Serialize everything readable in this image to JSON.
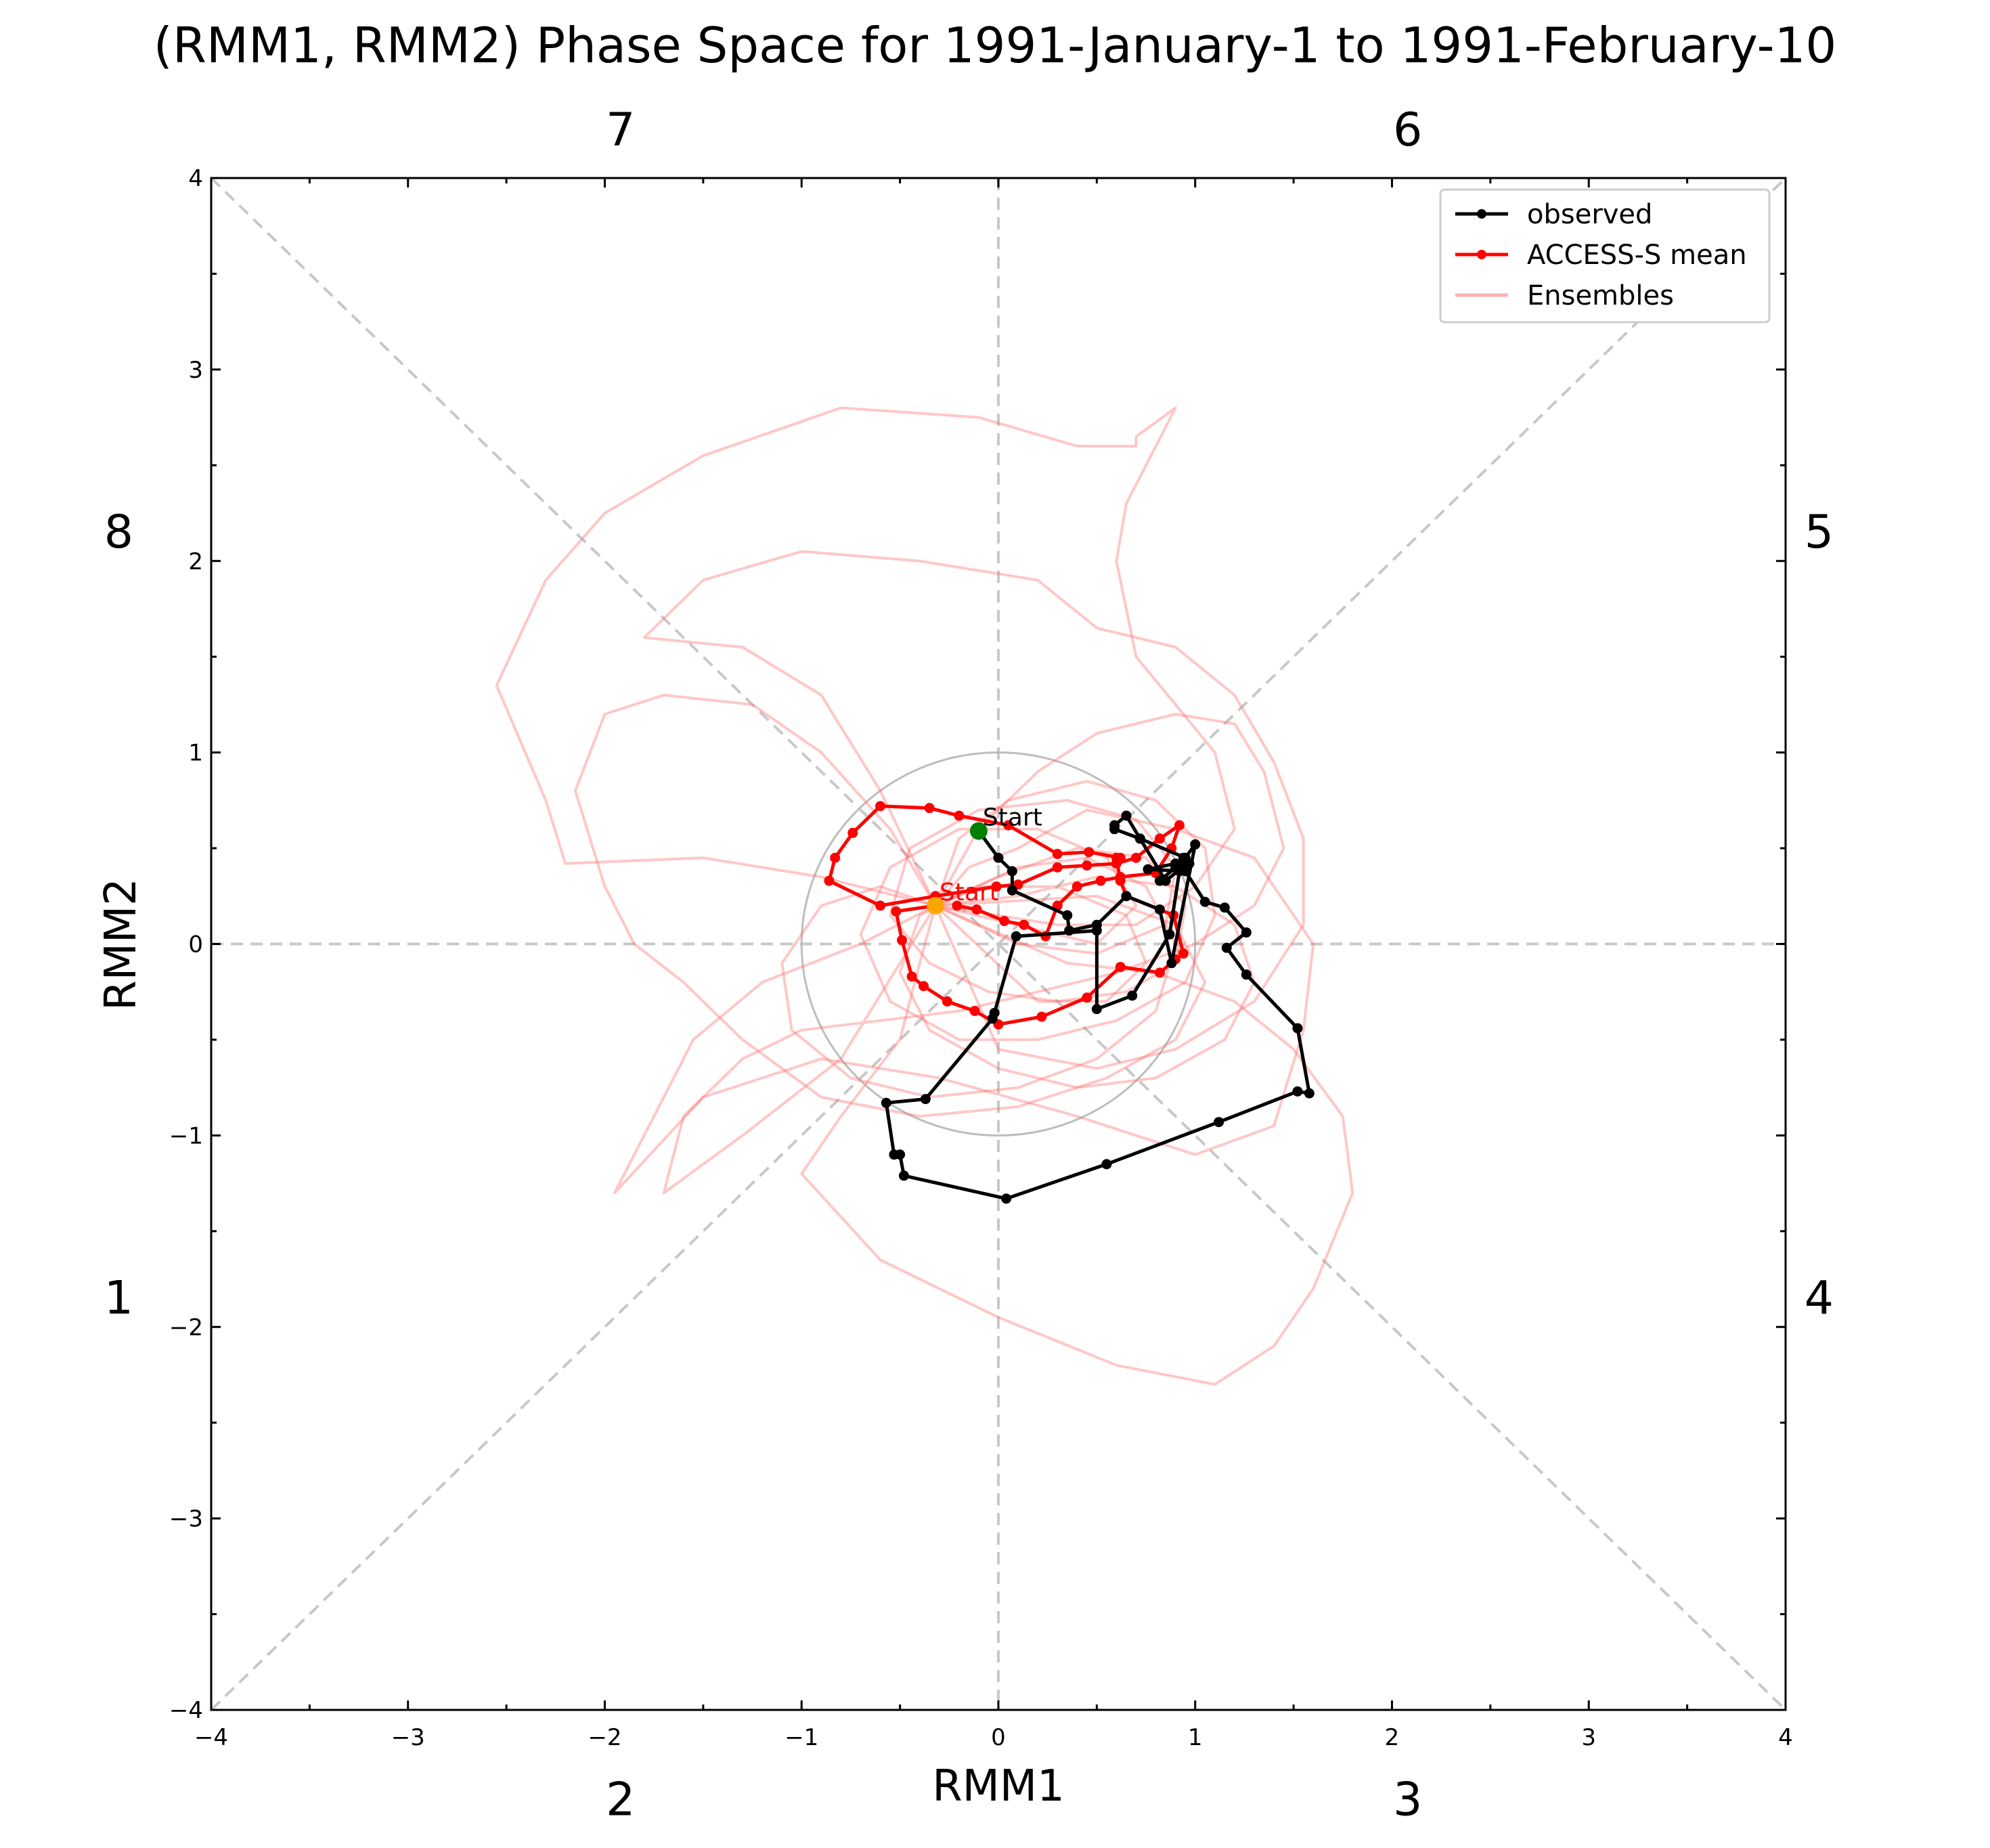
{
  "chart_data": {
    "type": "line",
    "title": "(RMM1, RMM2) Phase Space for 1991-January-1 to 1991-February-10",
    "xlabel": "RMM1",
    "ylabel": "RMM2",
    "xlim": [
      -4,
      4
    ],
    "ylim": [
      -4,
      4
    ],
    "xticks": [
      -4,
      -3,
      -2,
      -1,
      0,
      1,
      2,
      3,
      4
    ],
    "yticks": [
      -4,
      -3,
      -2,
      -1,
      0,
      1,
      2,
      3,
      4
    ],
    "xtick_labels": [
      "−4",
      "−3",
      "−2",
      "−1",
      "0",
      "1",
      "2",
      "3",
      "4"
    ],
    "ytick_labels": [
      "−4",
      "−3",
      "−2",
      "−1",
      "0",
      "1",
      "2",
      "3",
      "4"
    ],
    "phase_labels": [
      {
        "label": "7",
        "x": -1.92,
        "y": 4.17
      },
      {
        "label": "6",
        "x": 2.08,
        "y": 4.17
      },
      {
        "label": "8",
        "x": -4.47,
        "y": 2.07
      },
      {
        "label": "5",
        "x": 4.17,
        "y": 2.07
      },
      {
        "label": "1",
        "x": -4.47,
        "y": -1.93
      },
      {
        "label": "4",
        "x": 4.17,
        "y": -1.93
      },
      {
        "label": "2",
        "x": -1.92,
        "y": -4.55
      },
      {
        "label": "3",
        "x": 2.08,
        "y": -4.55
      }
    ],
    "unit_circle_radius": 1,
    "legend": {
      "position": "top-right",
      "entries": [
        {
          "label": "observed",
          "color": "#000000",
          "marker": true
        },
        {
          "label": "ACCESS-S mean",
          "color": "#ff0000",
          "marker": true
        },
        {
          "label": "Ensembles",
          "color": "#ffb3b3",
          "marker": false
        }
      ]
    },
    "start_labels": [
      {
        "text": "Start",
        "x": -0.1,
        "y": 0.59,
        "color": "#000000",
        "dot_color": "#008000"
      },
      {
        "text": "Start",
        "x": -0.32,
        "y": 0.2,
        "color": "#ff0000",
        "dot_color": "#ffa500"
      }
    ],
    "series": [
      {
        "name": "observed",
        "color": "#000000",
        "x": [
          -0.1,
          0.0,
          0.07,
          0.07,
          0.35,
          0.36,
          0.5,
          0.65,
          0.82,
          0.88,
          1.0,
          0.95,
          0.72,
          0.65,
          0.59,
          0.59,
          0.72,
          0.85,
          0.96,
          0.9,
          0.76,
          0.95,
          1.05,
          1.15,
          1.26,
          1.16,
          1.26,
          1.52,
          1.58,
          1.52,
          1.12,
          0.55,
          0.04,
          -0.48,
          -0.5,
          -0.53,
          -0.57,
          -0.37,
          -0.03,
          -0.02,
          0.09,
          0.5,
          0.5,
          0.68,
          0.87,
          0.92,
          0.94,
          0.97,
          0.9,
          0.82
        ],
        "y": [
          0.59,
          0.45,
          0.38,
          0.28,
          0.15,
          0.07,
          0.1,
          0.25,
          0.18,
          -0.1,
          0.52,
          0.45,
          0.55,
          0.67,
          0.62,
          0.6,
          0.55,
          0.33,
          0.42,
          0.42,
          0.39,
          0.38,
          0.22,
          0.19,
          0.06,
          -0.02,
          -0.16,
          -0.44,
          -0.78,
          -0.77,
          -0.93,
          -1.15,
          -1.33,
          -1.21,
          -1.1,
          -1.1,
          -0.83,
          -0.81,
          -0.39,
          -0.36,
          0.04,
          0.07,
          -0.34,
          -0.27,
          0.05,
          0.38,
          0.45,
          0.42,
          0.4,
          0.33
        ]
      },
      {
        "name": "ACCESS-S mean",
        "color": "#ff0000",
        "x": [
          -0.32,
          -0.52,
          -0.49,
          -0.44,
          -0.38,
          -0.26,
          -0.12,
          0.0,
          0.22,
          0.45,
          0.62,
          0.82,
          0.9,
          0.94,
          0.89,
          0.65,
          0.62,
          0.6,
          0.62,
          0.46,
          0.3,
          0.05,
          -0.2,
          -0.35,
          -0.6,
          -0.74,
          -0.83,
          -0.86,
          -0.6,
          -0.32,
          -0.01,
          0.1,
          0.3,
          0.45,
          0.6,
          0.7,
          0.82,
          0.92,
          0.88,
          0.8,
          0.62,
          0.52,
          0.4,
          0.3,
          0.24,
          0.13,
          0.03,
          -0.11,
          -0.21
        ],
        "y": [
          0.2,
          0.17,
          0.02,
          -0.17,
          -0.22,
          -0.3,
          -0.35,
          -0.42,
          -0.38,
          -0.28,
          -0.12,
          -0.15,
          -0.08,
          -0.05,
          0.15,
          0.25,
          0.33,
          0.45,
          0.45,
          0.48,
          0.47,
          0.62,
          0.67,
          0.71,
          0.72,
          0.58,
          0.45,
          0.33,
          0.2,
          0.25,
          0.3,
          0.31,
          0.4,
          0.41,
          0.42,
          0.45,
          0.55,
          0.62,
          0.5,
          0.37,
          0.35,
          0.33,
          0.3,
          0.2,
          0.04,
          0.1,
          0.12,
          0.18,
          0.2
        ]
      }
    ],
    "ensembles": [
      [
        [
          -0.32,
          0.2
        ],
        [
          -0.7,
          0.0
        ],
        [
          -1.2,
          -0.2
        ],
        [
          -1.55,
          -0.5
        ],
        [
          -1.95,
          -1.3
        ],
        [
          -1.5,
          -0.8
        ],
        [
          -0.9,
          -0.6
        ],
        [
          -0.3,
          -0.7
        ],
        [
          0.4,
          -0.9
        ],
        [
          1.0,
          -1.1
        ],
        [
          1.4,
          -0.95
        ],
        [
          1.55,
          -0.45
        ],
        [
          1.6,
          0.0
        ],
        [
          1.3,
          0.45
        ],
        [
          0.9,
          0.6
        ],
        [
          0.45,
          0.7
        ],
        [
          0.1,
          0.5
        ],
        [
          -0.15,
          0.4
        ],
        [
          -0.32,
          0.2
        ]
      ],
      [
        [
          -0.32,
          0.2
        ],
        [
          -0.9,
          0.35
        ],
        [
          -1.5,
          0.45
        ],
        [
          -2.2,
          0.42
        ],
        [
          -2.3,
          0.75
        ],
        [
          -2.55,
          1.35
        ],
        [
          -2.3,
          1.9
        ],
        [
          -2.0,
          2.25
        ],
        [
          -1.5,
          2.55
        ],
        [
          -0.8,
          2.8
        ],
        [
          -0.1,
          2.75
        ],
        [
          0.4,
          2.6
        ],
        [
          0.7,
          2.6
        ],
        [
          0.7,
          2.65
        ],
        [
          0.9,
          2.8
        ],
        [
          0.65,
          2.3
        ],
        [
          0.6,
          2.0
        ],
        [
          0.7,
          1.5
        ],
        [
          0.9,
          1.25
        ],
        [
          1.1,
          1.0
        ],
        [
          1.2,
          0.6
        ],
        [
          1.0,
          0.3
        ],
        [
          0.7,
          0.1
        ],
        [
          0.3,
          0.1
        ],
        [
          -0.32,
          0.2
        ]
      ],
      [
        [
          -0.32,
          0.2
        ],
        [
          -0.4,
          -0.1
        ],
        [
          -0.5,
          -0.5
        ],
        [
          -0.8,
          -0.9
        ],
        [
          -1.0,
          -1.2
        ],
        [
          -0.6,
          -1.65
        ],
        [
          0.0,
          -1.95
        ],
        [
          0.6,
          -2.2
        ],
        [
          1.1,
          -2.3
        ],
        [
          1.4,
          -2.1
        ],
        [
          1.6,
          -1.8
        ],
        [
          1.8,
          -1.3
        ],
        [
          1.75,
          -0.9
        ],
        [
          1.5,
          -0.55
        ],
        [
          1.2,
          -0.3
        ],
        [
          0.8,
          -0.15
        ],
        [
          0.35,
          -0.1
        ],
        [
          -0.32,
          0.2
        ]
      ],
      [
        [
          -0.32,
          0.2
        ],
        [
          -0.1,
          0.6
        ],
        [
          0.2,
          0.9
        ],
        [
          0.5,
          1.1
        ],
        [
          0.9,
          1.2
        ],
        [
          1.2,
          1.15
        ],
        [
          1.35,
          0.9
        ],
        [
          1.45,
          0.5
        ],
        [
          1.3,
          0.2
        ],
        [
          1.0,
          0.0
        ],
        [
          0.6,
          -0.15
        ],
        [
          0.2,
          -0.25
        ],
        [
          -0.2,
          -0.35
        ],
        [
          -0.6,
          -0.4
        ],
        [
          -1.0,
          -0.45
        ],
        [
          -1.3,
          -0.6
        ],
        [
          -1.6,
          -0.9
        ],
        [
          -1.7,
          -1.3
        ],
        [
          -1.3,
          -1.0
        ],
        [
          -0.8,
          -0.6
        ],
        [
          -0.32,
          0.2
        ]
      ],
      [
        [
          -0.32,
          0.2
        ],
        [
          -0.6,
          0.8
        ],
        [
          -0.9,
          1.3
        ],
        [
          -1.3,
          1.55
        ],
        [
          -1.8,
          1.6
        ],
        [
          -1.5,
          1.9
        ],
        [
          -1.0,
          2.05
        ],
        [
          -0.4,
          2.0
        ],
        [
          0.2,
          1.9
        ],
        [
          0.5,
          1.65
        ],
        [
          0.9,
          1.55
        ],
        [
          1.2,
          1.3
        ],
        [
          1.4,
          0.95
        ],
        [
          1.55,
          0.55
        ],
        [
          1.55,
          0.1
        ],
        [
          1.3,
          -0.3
        ],
        [
          0.9,
          -0.55
        ],
        [
          0.5,
          -0.65
        ],
        [
          0.0,
          -0.55
        ],
        [
          -0.32,
          0.2
        ]
      ],
      [
        [
          -0.32,
          0.2
        ],
        [
          -0.55,
          0.6
        ],
        [
          -0.9,
          1.0
        ],
        [
          -1.25,
          1.25
        ],
        [
          -1.7,
          1.3
        ],
        [
          -2.0,
          1.2
        ],
        [
          -2.15,
          0.8
        ],
        [
          -2.0,
          0.3
        ],
        [
          -1.85,
          0.0
        ],
        [
          -1.6,
          -0.2
        ],
        [
          -1.3,
          -0.5
        ],
        [
          -0.9,
          -0.8
        ],
        [
          -0.4,
          -0.9
        ],
        [
          0.1,
          -0.85
        ],
        [
          0.55,
          -0.7
        ],
        [
          0.9,
          -0.5
        ],
        [
          1.05,
          -0.2
        ],
        [
          0.9,
          0.1
        ],
        [
          0.5,
          0.25
        ],
        [
          -0.32,
          0.2
        ]
      ],
      [
        [
          -0.32,
          0.2
        ],
        [
          0.0,
          0.35
        ],
        [
          0.4,
          0.5
        ],
        [
          0.75,
          0.45
        ],
        [
          0.95,
          0.2
        ],
        [
          0.9,
          -0.1
        ],
        [
          0.65,
          -0.25
        ],
        [
          0.3,
          -0.3
        ],
        [
          -0.05,
          -0.25
        ],
        [
          -0.35,
          -0.1
        ],
        [
          -0.55,
          0.15
        ],
        [
          -0.45,
          0.5
        ],
        [
          -0.1,
          0.7
        ],
        [
          0.35,
          0.75
        ],
        [
          0.7,
          0.65
        ],
        [
          0.9,
          0.4
        ],
        [
          0.85,
          0.1
        ],
        [
          0.5,
          -0.05
        ],
        [
          0.1,
          0.0
        ],
        [
          -0.32,
          0.2
        ]
      ],
      [
        [
          -0.32,
          0.2
        ],
        [
          -0.2,
          0.55
        ],
        [
          0.05,
          0.75
        ],
        [
          0.45,
          0.85
        ],
        [
          0.8,
          0.75
        ],
        [
          1.05,
          0.5
        ],
        [
          1.1,
          0.15
        ],
        [
          0.95,
          -0.2
        ],
        [
          0.6,
          -0.4
        ],
        [
          0.2,
          -0.5
        ],
        [
          -0.2,
          -0.5
        ],
        [
          -0.55,
          -0.3
        ],
        [
          -0.7,
          0.05
        ],
        [
          -0.55,
          0.4
        ],
        [
          -0.2,
          0.6
        ],
        [
          0.2,
          0.6
        ],
        [
          0.55,
          0.45
        ],
        [
          0.7,
          0.2
        ],
        [
          0.5,
          0.0
        ],
        [
          -0.32,
          0.2
        ]
      ],
      [
        [
          -0.32,
          0.2
        ],
        [
          -0.6,
          0.3
        ],
        [
          -0.9,
          0.2
        ],
        [
          -1.1,
          -0.1
        ],
        [
          -1.05,
          -0.45
        ],
        [
          -0.75,
          -0.7
        ],
        [
          -0.35,
          -0.8
        ],
        [
          0.1,
          -0.75
        ],
        [
          0.5,
          -0.6
        ],
        [
          0.8,
          -0.35
        ],
        [
          0.9,
          0.0
        ],
        [
          0.75,
          0.3
        ],
        [
          0.45,
          0.45
        ],
        [
          0.1,
          0.4
        ],
        [
          -0.32,
          0.2
        ]
      ],
      [
        [
          -0.32,
          0.2
        ],
        [
          0.1,
          0.25
        ],
        [
          0.5,
          0.35
        ],
        [
          0.9,
          0.3
        ],
        [
          1.2,
          0.1
        ],
        [
          1.3,
          -0.2
        ],
        [
          1.15,
          -0.5
        ],
        [
          0.8,
          -0.7
        ],
        [
          0.4,
          -0.75
        ],
        [
          0.0,
          -0.65
        ],
        [
          -0.35,
          -0.45
        ],
        [
          -0.5,
          -0.15
        ],
        [
          -0.4,
          0.15
        ],
        [
          -0.1,
          0.3
        ],
        [
          0.3,
          0.3
        ],
        [
          0.65,
          0.15
        ],
        [
          0.75,
          -0.1
        ],
        [
          0.55,
          -0.3
        ],
        [
          0.2,
          -0.3
        ],
        [
          -0.32,
          0.2
        ]
      ]
    ]
  }
}
